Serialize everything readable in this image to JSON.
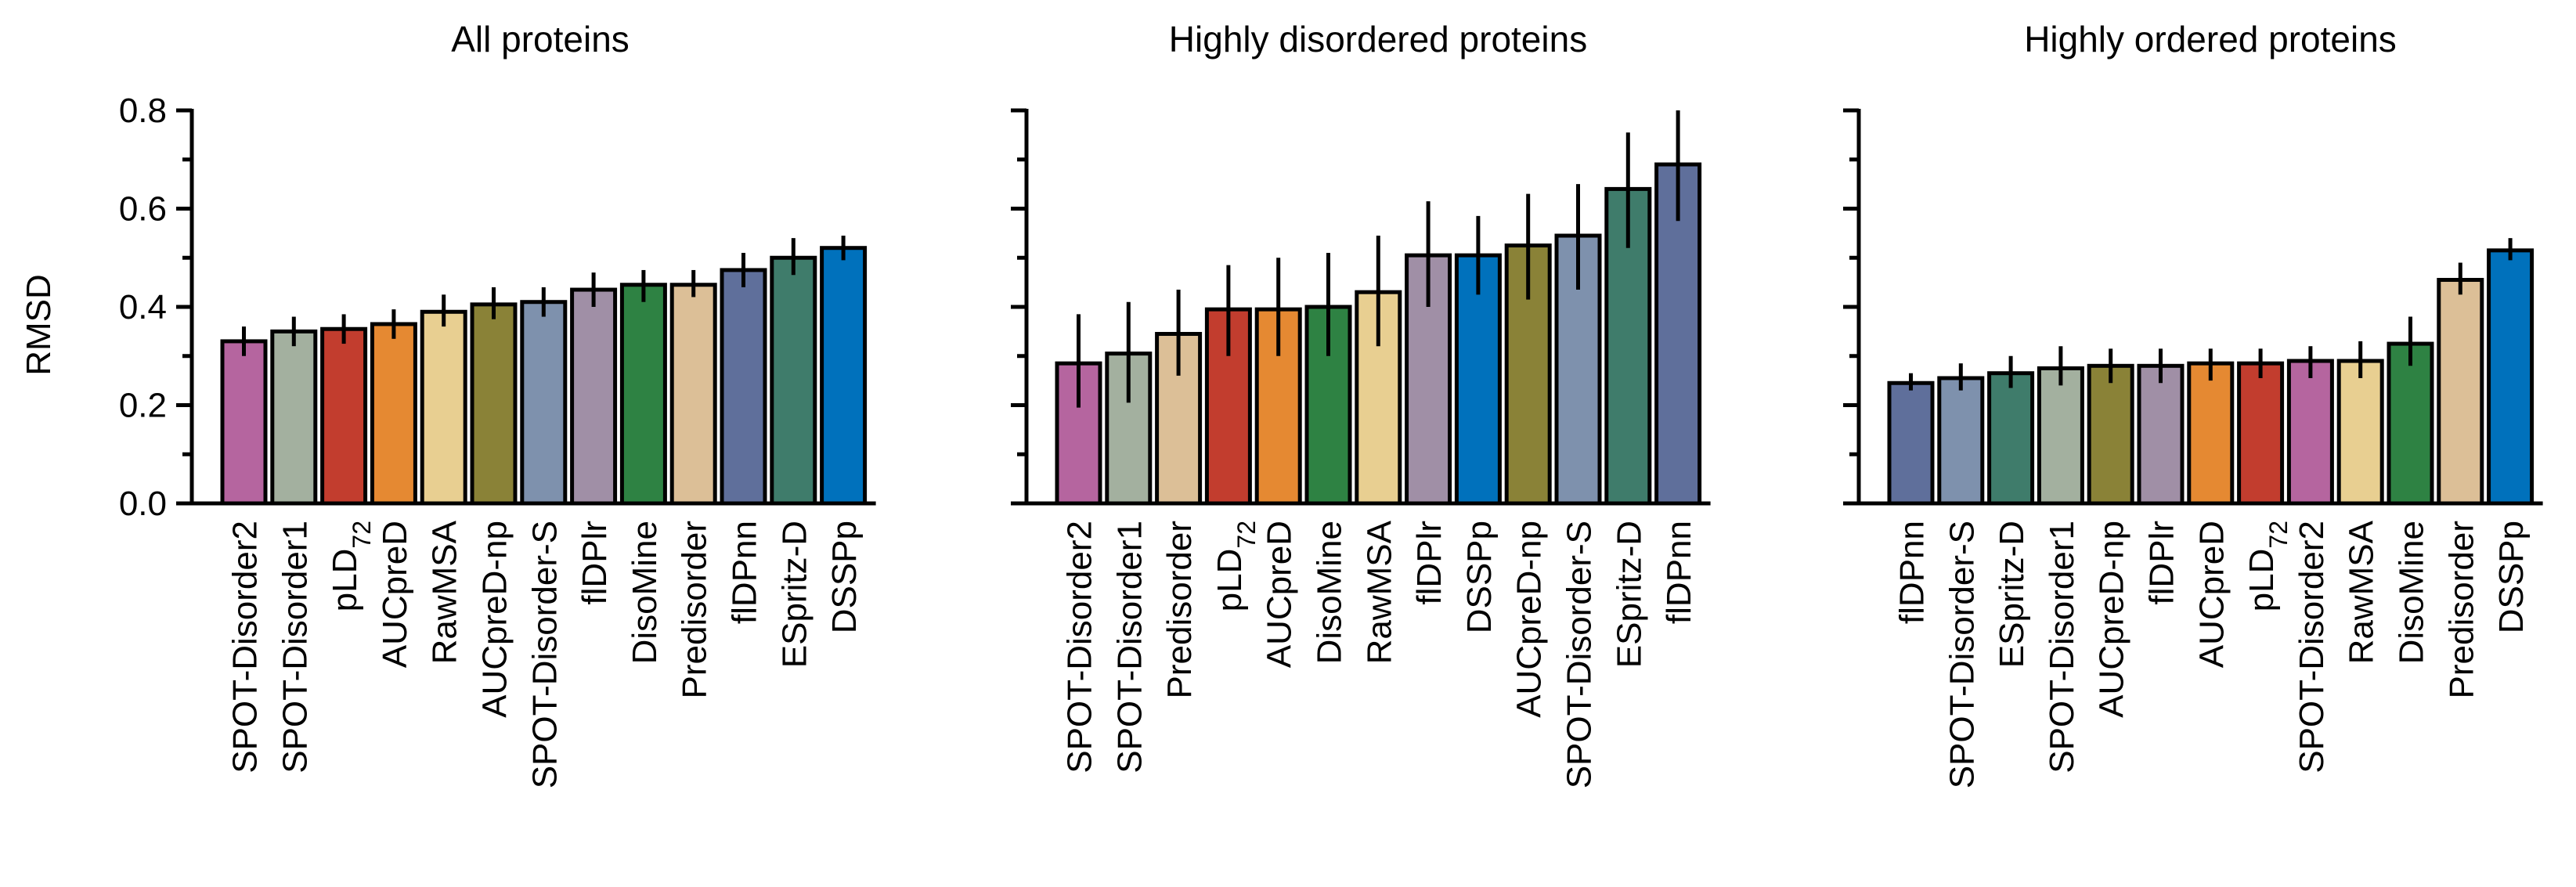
{
  "chart_data": [
    {
      "type": "bar",
      "title": "All proteins",
      "ylabel": "RMSD",
      "xlabel": "",
      "ylim": [
        0,
        0.8
      ],
      "yticks": [
        "0.0",
        "0.2",
        "0.4",
        "0.6",
        "0.8"
      ],
      "yticks_values": [
        0,
        0.2,
        0.4,
        0.6,
        0.8
      ],
      "minor_ticks": [
        0.1,
        0.3,
        0.5,
        0.7
      ],
      "categories": [
        {
          "label": "SPOT-Disorder2",
          "value": 0.33,
          "err_low": 0.3,
          "err_high": 0.36,
          "color": "#b5659f"
        },
        {
          "label": "SPOT-Disorder1",
          "value": 0.35,
          "err_low": 0.32,
          "err_high": 0.38,
          "color": "#a3b09f"
        },
        {
          "label": "pLD",
          "sub": "72",
          "value": 0.355,
          "err_low": 0.325,
          "err_high": 0.385,
          "color": "#c23d2e"
        },
        {
          "label": "AUCpreD",
          "value": 0.365,
          "err_low": 0.335,
          "err_high": 0.395,
          "color": "#e58932"
        },
        {
          "label": "RawMSA",
          "value": 0.39,
          "err_low": 0.36,
          "err_high": 0.425,
          "color": "#e8cf91"
        },
        {
          "label": "AUCpreD-np",
          "value": 0.405,
          "err_low": 0.375,
          "err_high": 0.44,
          "color": "#8a8237"
        },
        {
          "label": "SPOT-Disorder-S",
          "value": 0.41,
          "err_low": 0.38,
          "err_high": 0.44,
          "color": "#7e91ad"
        },
        {
          "label": "flDPlr",
          "value": 0.435,
          "err_low": 0.4,
          "err_high": 0.47,
          "color": "#a08fa6"
        },
        {
          "label": "DisoMine",
          "value": 0.445,
          "err_low": 0.41,
          "err_high": 0.475,
          "color": "#2e8243"
        },
        {
          "label": "Predisorder",
          "value": 0.445,
          "err_low": 0.42,
          "err_high": 0.475,
          "color": "#dcbf97"
        },
        {
          "label": "flDPnn",
          "value": 0.475,
          "err_low": 0.44,
          "err_high": 0.51,
          "color": "#5f6f9b"
        },
        {
          "label": "ESpritz-D",
          "value": 0.5,
          "err_low": 0.465,
          "err_high": 0.54,
          "color": "#3f7c6b"
        },
        {
          "label": "DSSPp",
          "value": 0.52,
          "err_low": 0.495,
          "err_high": 0.545,
          "color": "#0071bc"
        }
      ]
    },
    {
      "type": "bar",
      "title": "Highly disordered proteins",
      "ylabel": "",
      "xlabel": "",
      "ylim": [
        0,
        0.8
      ],
      "yticks": [
        "",
        "",
        "",
        "",
        ""
      ],
      "yticks_values": [
        0,
        0.2,
        0.4,
        0.6,
        0.8
      ],
      "minor_ticks": [
        0.1,
        0.3,
        0.5,
        0.7
      ],
      "categories": [
        {
          "label": "SPOT-Disorder2",
          "value": 0.285,
          "err_low": 0.195,
          "err_high": 0.385,
          "color": "#b5659f"
        },
        {
          "label": "SPOT-Disorder1",
          "value": 0.305,
          "err_low": 0.205,
          "err_high": 0.41,
          "color": "#a3b09f"
        },
        {
          "label": "Predisorder",
          "value": 0.345,
          "err_low": 0.26,
          "err_high": 0.435,
          "color": "#dcbf97"
        },
        {
          "label": "pLD",
          "sub": "72",
          "value": 0.395,
          "err_low": 0.3,
          "err_high": 0.485,
          "color": "#c23d2e"
        },
        {
          "label": "AUCpreD",
          "value": 0.395,
          "err_low": 0.3,
          "err_high": 0.5,
          "color": "#e58932"
        },
        {
          "label": "DisoMine",
          "value": 0.4,
          "err_low": 0.3,
          "err_high": 0.51,
          "color": "#2e8243"
        },
        {
          "label": "RawMSA",
          "value": 0.43,
          "err_low": 0.32,
          "err_high": 0.545,
          "color": "#e8cf91"
        },
        {
          "label": "flDPlr",
          "value": 0.505,
          "err_low": 0.4,
          "err_high": 0.615,
          "color": "#a08fa6"
        },
        {
          "label": "DSSPp",
          "value": 0.505,
          "err_low": 0.425,
          "err_high": 0.585,
          "color": "#0071bc"
        },
        {
          "label": "AUCpreD-np",
          "value": 0.525,
          "err_low": 0.415,
          "err_high": 0.63,
          "color": "#8a8237"
        },
        {
          "label": "SPOT-Disorder-S",
          "value": 0.545,
          "err_low": 0.435,
          "err_high": 0.65,
          "color": "#7e91ad"
        },
        {
          "label": "ESpritz-D",
          "value": 0.64,
          "err_low": 0.52,
          "err_high": 0.755,
          "color": "#3f7c6b"
        },
        {
          "label": "flDPnn",
          "value": 0.69,
          "err_low": 0.575,
          "err_high": 0.8,
          "color": "#5f6f9b"
        }
      ]
    },
    {
      "type": "bar",
      "title": "Highly ordered proteins",
      "ylabel": "",
      "xlabel": "",
      "ylim": [
        0,
        0.8
      ],
      "yticks": [
        "",
        "",
        "",
        "",
        ""
      ],
      "yticks_values": [
        0,
        0.2,
        0.4,
        0.6,
        0.8
      ],
      "minor_ticks": [
        0.1,
        0.3,
        0.5,
        0.7
      ],
      "categories": [
        {
          "label": "flDPnn",
          "value": 0.245,
          "err_low": 0.23,
          "err_high": 0.265,
          "color": "#5f6f9b"
        },
        {
          "label": "SPOT-Disorder-S",
          "value": 0.255,
          "err_low": 0.23,
          "err_high": 0.285,
          "color": "#7e91ad"
        },
        {
          "label": "ESpritz-D",
          "value": 0.265,
          "err_low": 0.235,
          "err_high": 0.3,
          "color": "#3f7c6b"
        },
        {
          "label": "SPOT-Disorder1",
          "value": 0.275,
          "err_low": 0.24,
          "err_high": 0.32,
          "color": "#a3b09f"
        },
        {
          "label": "AUCpreD-np",
          "value": 0.28,
          "err_low": 0.245,
          "err_high": 0.315,
          "color": "#8a8237"
        },
        {
          "label": "flDPlr",
          "value": 0.28,
          "err_low": 0.245,
          "err_high": 0.315,
          "color": "#a08fa6"
        },
        {
          "label": "AUCpreD",
          "value": 0.285,
          "err_low": 0.25,
          "err_high": 0.315,
          "color": "#e58932"
        },
        {
          "label": "pLD",
          "sub": "72",
          "value": 0.285,
          "err_low": 0.255,
          "err_high": 0.315,
          "color": "#c23d2e"
        },
        {
          "label": "SPOT-Disorder2",
          "value": 0.29,
          "err_low": 0.255,
          "err_high": 0.32,
          "color": "#b5659f"
        },
        {
          "label": "RawMSA",
          "value": 0.29,
          "err_low": 0.255,
          "err_high": 0.33,
          "color": "#e8cf91"
        },
        {
          "label": "DisoMine",
          "value": 0.325,
          "err_low": 0.28,
          "err_high": 0.38,
          "color": "#2e8243"
        },
        {
          "label": "Predisorder",
          "value": 0.455,
          "err_low": 0.425,
          "err_high": 0.49,
          "color": "#dcbf97"
        },
        {
          "label": "DSSPp",
          "value": 0.515,
          "err_low": 0.495,
          "err_high": 0.54,
          "color": "#0071bc"
        }
      ]
    }
  ]
}
